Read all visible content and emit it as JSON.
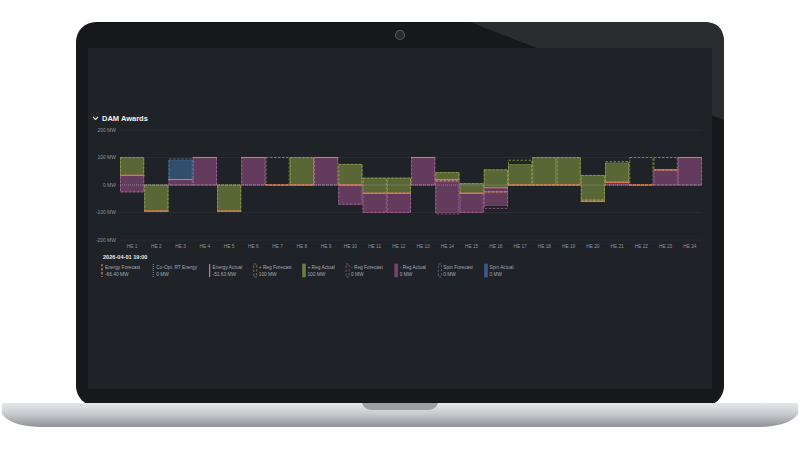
{
  "chart_data": {
    "type": "bar",
    "title": "DAM Awards",
    "legend_title": "2026-04-01 19:00",
    "categories": [
      "HE 1",
      "HE 2",
      "HE 3",
      "HE 4",
      "HE 5",
      "HE 6",
      "HE 7",
      "HE 8",
      "HE 9",
      "HE 10",
      "HE 11",
      "HE 12",
      "HE 13",
      "HE 14",
      "HE 15",
      "HE 16",
      "HE 17",
      "HE 18",
      "HE 19",
      "HE 20",
      "HE 21",
      "HE 22",
      "HE 23",
      "HE 24"
    ],
    "ylim": [
      -200,
      200
    ],
    "yticks": [
      {
        "value": -200,
        "label": "-200 MW"
      },
      {
        "value": -100,
        "label": "-100 MW"
      },
      {
        "value": 0,
        "label": "0 MW"
      },
      {
        "value": 100,
        "label": "100 MW"
      },
      {
        "value": 200,
        "label": "200 MW"
      }
    ],
    "grid": true,
    "stacked": true,
    "legend": "bottom",
    "series": [
      {
        "name": "Energy Forecast",
        "type": "line",
        "line_style": "dashed",
        "color": "#e8845a",
        "readout": "-66.40 MW",
        "values": [
          35,
          -95,
          20,
          100,
          -95,
          100,
          0,
          0,
          100,
          0,
          -30,
          -30,
          100,
          15,
          -30,
          -25,
          0,
          0,
          0,
          -55,
          10,
          0,
          55,
          100
        ]
      },
      {
        "name": "Co-Opt. RT Energy",
        "type": "line",
        "line_style": "dotted",
        "color": "#9aa0a8",
        "readout": "0 MW",
        "values": [
          0,
          0,
          0,
          0,
          0,
          0,
          0,
          0,
          0,
          0,
          0,
          0,
          0,
          0,
          0,
          0,
          0,
          0,
          0,
          0,
          0,
          0,
          0,
          0
        ]
      },
      {
        "name": "Energy Actual",
        "type": "line",
        "line_style": "solid",
        "color": "#e0764a",
        "readout": "-51.63 MW",
        "values": [
          35,
          -95,
          20,
          100,
          -95,
          100,
          0,
          0,
          100,
          0,
          -30,
          -30,
          100,
          20,
          -30,
          -10,
          0,
          0,
          0,
          -60,
          10,
          0,
          55,
          100
        ]
      },
      {
        "name": "+ Reg Forecast",
        "type": "bar",
        "line_style": "dashed",
        "color": "#9aab55",
        "readout": "100 MW",
        "values": [
          65,
          95,
          0,
          0,
          95,
          0,
          100,
          100,
          0,
          75,
          55,
          55,
          0,
          30,
          35,
          80,
          90,
          100,
          100,
          90,
          75,
          100,
          45,
          0
        ]
      },
      {
        "name": "+ Reg Actual",
        "type": "bar",
        "line_style": "solid",
        "color": "#6d7d3c",
        "readout": "100 MW",
        "values": [
          65,
          95,
          0,
          0,
          95,
          0,
          0,
          100,
          0,
          75,
          55,
          55,
          0,
          25,
          35,
          65,
          75,
          100,
          100,
          95,
          70,
          0,
          0,
          0
        ]
      },
      {
        "name": "- Reg Forecast",
        "type": "bar",
        "line_style": "dashed",
        "color": "#b06d9e",
        "readout": "0 MW",
        "values": [
          -60,
          0,
          -20,
          -100,
          0,
          -100,
          0,
          0,
          -100,
          -70,
          -70,
          -70,
          -100,
          -120,
          -70,
          -60,
          0,
          0,
          0,
          0,
          -10,
          0,
          -55,
          -100
        ]
      },
      {
        "name": "- Reg Actual",
        "type": "bar",
        "line_style": "solid",
        "color": "#7a4470",
        "readout": "0 MW",
        "values": [
          -60,
          0,
          -20,
          -100,
          0,
          -100,
          0,
          0,
          -100,
          -70,
          -70,
          -70,
          -100,
          -120,
          -70,
          -65,
          0,
          0,
          0,
          0,
          -10,
          0,
          -55,
          -100
        ]
      },
      {
        "name": "Spin Forecast",
        "type": "bar",
        "line_style": "dashed",
        "color": "#5a86b8",
        "readout": "0 MW",
        "values": [
          0,
          0,
          75,
          0,
          0,
          0,
          0,
          0,
          0,
          0,
          0,
          0,
          0,
          0,
          0,
          0,
          0,
          0,
          0,
          0,
          0,
          0,
          0,
          0
        ]
      },
      {
        "name": "Spin Actual",
        "type": "bar",
        "line_style": "solid",
        "color": "#3a5d86",
        "readout": "0 MW",
        "values": [
          0,
          0,
          70,
          0,
          0,
          0,
          0,
          0,
          0,
          0,
          0,
          0,
          0,
          0,
          0,
          0,
          0,
          0,
          0,
          0,
          0,
          0,
          0,
          0
        ]
      }
    ]
  }
}
